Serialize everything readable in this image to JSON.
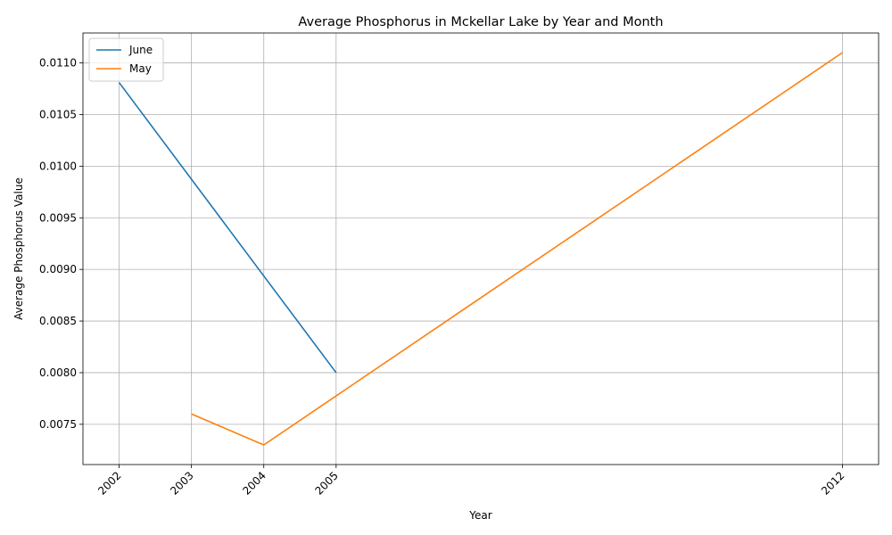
{
  "chart_data": {
    "type": "line",
    "title": "Average Phosphorus in Mckellar Lake by Year and Month",
    "xlabel": "Year",
    "ylabel": "Average Phosphorus Value",
    "x_ticks": [
      "2002",
      "2003",
      "2004",
      "2005",
      "2012"
    ],
    "y_ticks": [
      "0.0075",
      "0.0080",
      "0.0085",
      "0.0090",
      "0.0095",
      "0.0100",
      "0.0105",
      "0.0110"
    ],
    "xlim": [
      2001.5,
      2012.5
    ],
    "ylim": [
      0.00711,
      0.01129
    ],
    "grid": true,
    "legend_position": "top-left",
    "series": [
      {
        "name": "June",
        "color": "#1f77b4",
        "points": [
          [
            2002,
            0.01081
          ],
          [
            2005,
            0.008
          ]
        ]
      },
      {
        "name": "May",
        "color": "#ff7f0e",
        "points": [
          [
            2003,
            0.0076
          ],
          [
            2004,
            0.0073
          ],
          [
            2012,
            0.0111
          ]
        ]
      }
    ]
  }
}
